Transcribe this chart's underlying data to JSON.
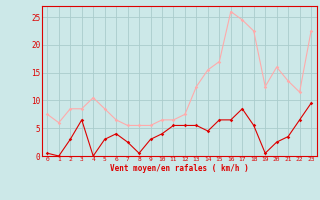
{
  "x": [
    0,
    1,
    2,
    3,
    4,
    5,
    6,
    7,
    8,
    9,
    10,
    11,
    12,
    13,
    14,
    15,
    16,
    17,
    18,
    19,
    20,
    21,
    22,
    23
  ],
  "rafales": [
    7.5,
    6.0,
    8.5,
    8.5,
    10.5,
    8.5,
    6.5,
    5.5,
    5.5,
    5.5,
    6.5,
    6.5,
    7.5,
    12.5,
    15.5,
    17.0,
    26.0,
    24.5,
    22.5,
    12.5,
    16.0,
    13.5,
    11.5,
    22.5
  ],
  "moyen": [
    0.5,
    0.0,
    3.0,
    6.5,
    0.0,
    3.0,
    4.0,
    2.5,
    0.5,
    3.0,
    4.0,
    5.5,
    5.5,
    5.5,
    4.5,
    6.5,
    6.5,
    8.5,
    5.5,
    0.5,
    2.5,
    3.5,
    6.5,
    9.5
  ],
  "color_rafales": "#ffaaaa",
  "color_moyen": "#dd0000",
  "bg_color": "#cce8e8",
  "grid_color": "#aacccc",
  "xlabel": "Vent moyen/en rafales ( km/h )",
  "xlabel_color": "#dd0000",
  "tick_color": "#dd0000",
  "spine_color": "#dd0000",
  "ylim": [
    0,
    27
  ],
  "yticks": [
    0,
    5,
    10,
    15,
    20,
    25
  ],
  "xlim": [
    -0.5,
    23.5
  ],
  "xtick_labels": [
    "0",
    "1",
    "2",
    "3",
    "4",
    "5",
    "6",
    "7",
    "8",
    "9",
    "10",
    "11",
    "12",
    "13",
    "14",
    "15",
    "16",
    "17",
    "18",
    "19",
    "20",
    "21",
    "22",
    "23"
  ]
}
